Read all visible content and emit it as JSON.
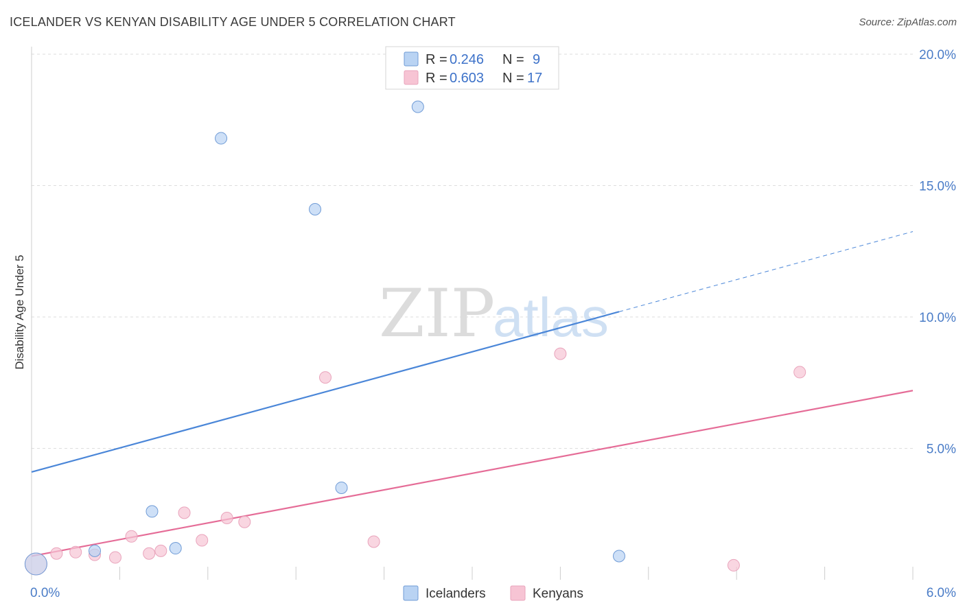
{
  "header": {
    "title": "ICELANDER VS KENYAN DISABILITY AGE UNDER 5 CORRELATION CHART",
    "source": "Source: ZipAtlas.com"
  },
  "watermark": {
    "zip": "ZIP",
    "atlas": "atlas"
  },
  "colors": {
    "icelanders": "#4a86d8",
    "icelanders_fill": "#b9d3f3",
    "kenyans": "#e56c97",
    "kenyans_fill": "#f7c4d4",
    "axis_text": "#4a7cc7",
    "grid": "#dddddd"
  },
  "chart_data": {
    "type": "scatter",
    "title": "ICELANDER VS KENYAN DISABILITY AGE UNDER 5 CORRELATION CHART",
    "xlabel": "",
    "ylabel": "Disability Age Under 5",
    "xlim": [
      0,
      6
    ],
    "ylim": [
      0,
      20.5
    ],
    "x_tick_labels": [
      "0.0%",
      "6.0%"
    ],
    "y_ticks": [
      5,
      10,
      15,
      20
    ],
    "y_tick_labels": [
      "5.0%",
      "10.0%",
      "15.0%",
      "20.0%"
    ],
    "grid": true,
    "legend": {
      "position": "top-center",
      "entries": [
        {
          "name": "Icelanders",
          "r_label": "R =",
          "r_value": "0.246",
          "n_label": "N =",
          "n_value": "9"
        },
        {
          "name": "Kenyans",
          "r_label": "R =",
          "r_value": "0.603",
          "n_label": "N =",
          "n_value": "17"
        }
      ]
    },
    "series": [
      {
        "name": "Icelanders",
        "points": [
          {
            "x": 0.03,
            "y": 0.6
          },
          {
            "x": 0.43,
            "y": 1.1
          },
          {
            "x": 0.82,
            "y": 2.6
          },
          {
            "x": 0.98,
            "y": 1.2
          },
          {
            "x": 1.29,
            "y": 16.8
          },
          {
            "x": 1.93,
            "y": 14.1
          },
          {
            "x": 2.11,
            "y": 3.5
          },
          {
            "x": 2.63,
            "y": 18.0
          },
          {
            "x": 4.0,
            "y": 0.9
          }
        ],
        "trend": {
          "x0": 0.0,
          "y0": 4.1,
          "x1": 4.0,
          "y1": 10.2,
          "dashed_to_x": 6.0,
          "dashed_to_y": 13.25
        }
      },
      {
        "name": "Kenyans",
        "points": [
          {
            "x": 0.03,
            "y": 0.6
          },
          {
            "x": 0.17,
            "y": 1.0
          },
          {
            "x": 0.3,
            "y": 1.05
          },
          {
            "x": 0.43,
            "y": 0.95
          },
          {
            "x": 0.57,
            "y": 0.85
          },
          {
            "x": 0.68,
            "y": 1.65
          },
          {
            "x": 0.8,
            "y": 1.0
          },
          {
            "x": 0.88,
            "y": 1.1
          },
          {
            "x": 1.04,
            "y": 2.55
          },
          {
            "x": 1.16,
            "y": 1.5
          },
          {
            "x": 1.33,
            "y": 2.35
          },
          {
            "x": 1.45,
            "y": 2.2
          },
          {
            "x": 2.0,
            "y": 7.7
          },
          {
            "x": 2.33,
            "y": 1.45
          },
          {
            "x": 3.6,
            "y": 8.6
          },
          {
            "x": 4.78,
            "y": 0.55
          },
          {
            "x": 5.23,
            "y": 7.9
          }
        ],
        "trend": {
          "x0": 0.0,
          "y0": 0.9,
          "x1": 6.0,
          "y1": 7.2
        }
      }
    ]
  }
}
